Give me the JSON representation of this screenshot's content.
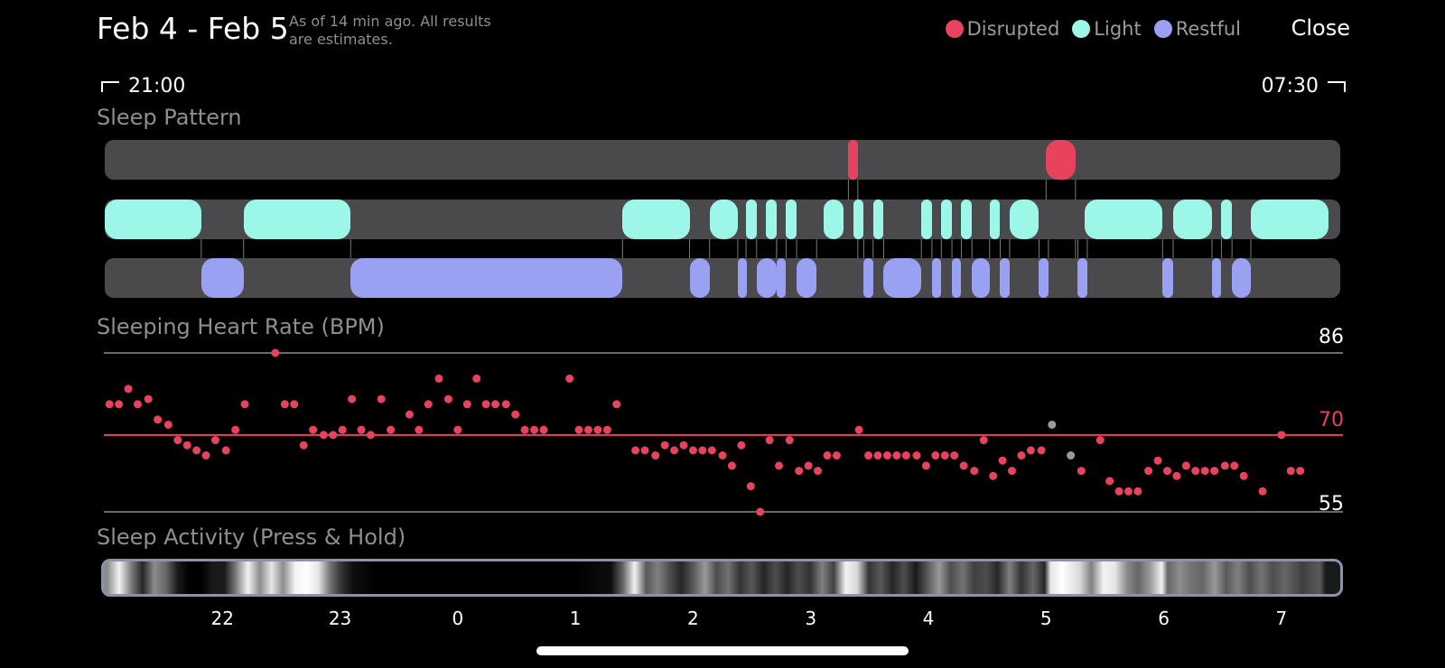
{
  "header": {
    "title": "Feb 4 - Feb 5",
    "subtitle": "As of 14 min ago. All results\nare estimates.",
    "close_label": "Close"
  },
  "legend": [
    {
      "label": "Disrupted",
      "color": "#e8435e"
    },
    {
      "label": "Light",
      "color": "#9cf7e8"
    },
    {
      "label": "Restful",
      "color": "#9aa0f2"
    }
  ],
  "range": {
    "start": "21:00",
    "end": "07:30"
  },
  "sections": {
    "sleep_pattern": "Sleep Pattern",
    "heart_rate": "Sleeping Heart Rate (BPM)",
    "activity": "Sleep Activity (Press & Hold)"
  },
  "colors": {
    "disrupted": "#e8435e",
    "light": "#9cf7e8",
    "restful": "#9aa0f2",
    "track": "#4a4a4c",
    "connector": "#7a7a7a"
  },
  "sleep_pattern": {
    "disrupted": [
      [
        3.32,
        3.4
      ],
      [
        5.0,
        5.25
      ]
    ],
    "light": [
      [
        21.0,
        21.82
      ],
      [
        22.18,
        23.09
      ],
      [
        1.4,
        1.97
      ],
      [
        2.14,
        2.38
      ],
      [
        2.45,
        2.54
      ],
      [
        2.62,
        2.71
      ],
      [
        2.79,
        2.88
      ],
      [
        3.11,
        3.28
      ],
      [
        3.36,
        3.45
      ],
      [
        3.53,
        3.62
      ],
      [
        3.94,
        4.03
      ],
      [
        4.11,
        4.2
      ],
      [
        4.28,
        4.37
      ],
      [
        4.52,
        4.61
      ],
      [
        4.69,
        4.94
      ],
      [
        5.33,
        5.99
      ],
      [
        6.08,
        6.41
      ],
      [
        6.49,
        6.58
      ],
      [
        6.74,
        7.4
      ]
    ],
    "restful": [
      [
        21.82,
        22.18
      ],
      [
        23.09,
        1.4
      ],
      [
        1.97,
        2.14
      ],
      [
        2.38,
        2.45
      ],
      [
        2.54,
        2.71
      ],
      [
        2.71,
        2.79
      ],
      [
        2.88,
        3.05
      ],
      [
        3.45,
        3.53
      ],
      [
        3.62,
        3.94
      ],
      [
        4.03,
        4.11
      ],
      [
        4.2,
        4.28
      ],
      [
        4.37,
        4.52
      ],
      [
        4.61,
        4.69
      ],
      [
        4.94,
        5.02
      ],
      [
        5.27,
        5.35
      ],
      [
        5.99,
        6.08
      ],
      [
        6.41,
        6.49
      ],
      [
        6.58,
        6.74
      ]
    ]
  },
  "chart_data": {
    "type": "scatter",
    "title": "Sleeping Heart Rate (BPM)",
    "x_unit": "clock hour",
    "ylim": [
      55,
      86
    ],
    "reference_lines": [
      {
        "value": 86,
        "label": "86"
      },
      {
        "value": 70,
        "label": "70"
      },
      {
        "value": 55,
        "label": "55"
      }
    ],
    "xticks": [
      "22",
      "23",
      "0",
      "1",
      "2",
      "3",
      "4",
      "5",
      "6",
      "7"
    ],
    "series": [
      {
        "color": "#e8435e",
        "points": [
          [
            21.04,
            76
          ],
          [
            21.12,
            76
          ],
          [
            21.2,
            79
          ],
          [
            21.28,
            76
          ],
          [
            21.37,
            77
          ],
          [
            21.45,
            73
          ],
          [
            21.54,
            72
          ],
          [
            21.62,
            69
          ],
          [
            21.7,
            68
          ],
          [
            21.78,
            67
          ],
          [
            21.86,
            66
          ],
          [
            21.94,
            69
          ],
          [
            22.03,
            67
          ],
          [
            22.11,
            71
          ],
          [
            22.19,
            76
          ],
          [
            22.45,
            86
          ],
          [
            22.53,
            76
          ],
          [
            22.61,
            76
          ],
          [
            22.69,
            68
          ],
          [
            22.77,
            71
          ],
          [
            22.86,
            70
          ],
          [
            22.94,
            70
          ],
          [
            23.02,
            71
          ],
          [
            23.1,
            77
          ],
          [
            23.18,
            71
          ],
          [
            23.26,
            70
          ],
          [
            23.35,
            77
          ],
          [
            23.43,
            71
          ],
          [
            23.59,
            74
          ],
          [
            23.67,
            71
          ],
          [
            23.75,
            76
          ],
          [
            23.84,
            81
          ],
          [
            23.92,
            77
          ],
          [
            0.0,
            71
          ],
          [
            0.08,
            76
          ],
          [
            0.16,
            81
          ],
          [
            0.24,
            76
          ],
          [
            0.32,
            76
          ],
          [
            0.41,
            76
          ],
          [
            0.49,
            74
          ],
          [
            0.57,
            71
          ],
          [
            0.65,
            71
          ],
          [
            0.73,
            71
          ],
          [
            0.95,
            81
          ],
          [
            1.03,
            71
          ],
          [
            1.11,
            71
          ],
          [
            1.19,
            71
          ],
          [
            1.27,
            71
          ],
          [
            1.35,
            76
          ],
          [
            1.51,
            67
          ],
          [
            1.59,
            67
          ],
          [
            1.68,
            66
          ],
          [
            1.76,
            68
          ],
          [
            1.84,
            67
          ],
          [
            1.92,
            68
          ],
          [
            2.0,
            67
          ],
          [
            2.08,
            67
          ],
          [
            2.16,
            67
          ],
          [
            2.25,
            66
          ],
          [
            2.33,
            64
          ],
          [
            2.41,
            68
          ],
          [
            2.49,
            60
          ],
          [
            2.57,
            55
          ],
          [
            2.65,
            69
          ],
          [
            2.73,
            64
          ],
          [
            2.82,
            69
          ],
          [
            2.9,
            63
          ],
          [
            2.98,
            64
          ],
          [
            3.06,
            63
          ],
          [
            3.14,
            66
          ],
          [
            3.22,
            66
          ],
          [
            3.41,
            71
          ],
          [
            3.49,
            66
          ],
          [
            3.57,
            66
          ],
          [
            3.65,
            66
          ],
          [
            3.73,
            66
          ],
          [
            3.81,
            66
          ],
          [
            3.9,
            66
          ],
          [
            3.98,
            64
          ],
          [
            4.06,
            66
          ],
          [
            4.14,
            66
          ],
          [
            4.22,
            66
          ],
          [
            4.3,
            64
          ],
          [
            4.39,
            63
          ],
          [
            4.47,
            69
          ],
          [
            4.55,
            62
          ],
          [
            4.63,
            65
          ],
          [
            4.71,
            63
          ],
          [
            4.79,
            66
          ],
          [
            4.87,
            67
          ],
          [
            4.96,
            67
          ],
          [
            5.3,
            63
          ],
          [
            5.46,
            69
          ],
          [
            5.54,
            61
          ],
          [
            5.62,
            59
          ],
          [
            5.7,
            59
          ],
          [
            5.78,
            59
          ],
          [
            5.87,
            63
          ],
          [
            5.95,
            65
          ],
          [
            6.03,
            63
          ],
          [
            6.11,
            62
          ],
          [
            6.19,
            64
          ],
          [
            6.27,
            63
          ],
          [
            6.35,
            63
          ],
          [
            6.43,
            63
          ],
          [
            6.52,
            64
          ],
          [
            6.6,
            64
          ],
          [
            6.68,
            62
          ],
          [
            6.84,
            59
          ],
          [
            7.0,
            70
          ],
          [
            7.08,
            63
          ],
          [
            7.16,
            63
          ]
        ]
      },
      {
        "color": "#9a9a9a",
        "points": [
          [
            5.05,
            72
          ],
          [
            5.21,
            66
          ]
        ]
      }
    ]
  },
  "activity_gradient": [
    [
      21.0,
      0.55
    ],
    [
      21.1,
      0.95
    ],
    [
      21.2,
      0.5
    ],
    [
      21.3,
      0.15
    ],
    [
      21.4,
      0.55
    ],
    [
      21.5,
      0.4
    ],
    [
      21.6,
      0.1
    ],
    [
      21.7,
      0.0
    ],
    [
      21.8,
      0.0
    ],
    [
      21.9,
      0.1
    ],
    [
      22.0,
      0.1
    ],
    [
      22.1,
      0.5
    ],
    [
      22.2,
      0.95
    ],
    [
      22.3,
      0.55
    ],
    [
      22.4,
      0.9
    ],
    [
      22.5,
      0.55
    ],
    [
      22.6,
      0.95
    ],
    [
      22.7,
      1.0
    ],
    [
      22.8,
      0.9
    ],
    [
      22.9,
      0.45
    ],
    [
      23.0,
      0.2
    ],
    [
      23.1,
      0.05
    ],
    [
      23.3,
      0.0
    ],
    [
      0.0,
      0.0
    ],
    [
      1.0,
      0.0
    ],
    [
      1.3,
      0.05
    ],
    [
      1.4,
      0.4
    ],
    [
      1.5,
      0.95
    ],
    [
      1.6,
      0.35
    ],
    [
      1.7,
      0.5
    ],
    [
      1.8,
      0.3
    ],
    [
      1.9,
      0.15
    ],
    [
      2.0,
      0.35
    ],
    [
      2.1,
      0.6
    ],
    [
      2.2,
      0.3
    ],
    [
      2.3,
      0.45
    ],
    [
      2.4,
      0.2
    ],
    [
      2.5,
      0.35
    ],
    [
      2.6,
      0.15
    ],
    [
      2.7,
      0.3
    ],
    [
      2.8,
      0.15
    ],
    [
      2.9,
      0.3
    ],
    [
      3.0,
      0.2
    ],
    [
      3.1,
      0.5
    ],
    [
      3.2,
      0.25
    ],
    [
      3.3,
      0.95
    ],
    [
      3.4,
      0.85
    ],
    [
      3.5,
      0.2
    ],
    [
      3.6,
      0.35
    ],
    [
      3.7,
      0.15
    ],
    [
      3.8,
      0.3
    ],
    [
      3.9,
      0.1
    ],
    [
      4.0,
      0.35
    ],
    [
      4.1,
      0.6
    ],
    [
      4.2,
      0.3
    ],
    [
      4.3,
      0.45
    ],
    [
      4.4,
      0.25
    ],
    [
      4.5,
      0.3
    ],
    [
      4.6,
      0.15
    ],
    [
      4.7,
      0.5
    ],
    [
      4.8,
      0.2
    ],
    [
      4.9,
      0.4
    ],
    [
      5.0,
      0.15
    ],
    [
      5.05,
      0.9
    ],
    [
      5.15,
      1.0
    ],
    [
      5.3,
      0.85
    ],
    [
      5.4,
      0.5
    ],
    [
      5.5,
      0.95
    ],
    [
      5.6,
      0.9
    ],
    [
      5.7,
      0.55
    ],
    [
      5.8,
      0.4
    ],
    [
      5.9,
      0.6
    ],
    [
      6.0,
      0.95
    ],
    [
      6.05,
      0.4
    ],
    [
      6.15,
      0.55
    ],
    [
      6.25,
      0.45
    ],
    [
      6.35,
      0.4
    ],
    [
      6.45,
      0.6
    ],
    [
      6.55,
      0.35
    ],
    [
      6.65,
      0.5
    ],
    [
      6.75,
      0.3
    ],
    [
      6.85,
      0.45
    ],
    [
      6.95,
      0.3
    ],
    [
      7.05,
      0.4
    ],
    [
      7.2,
      0.25
    ],
    [
      7.35,
      0.35
    ],
    [
      7.4,
      0.1
    ]
  ]
}
